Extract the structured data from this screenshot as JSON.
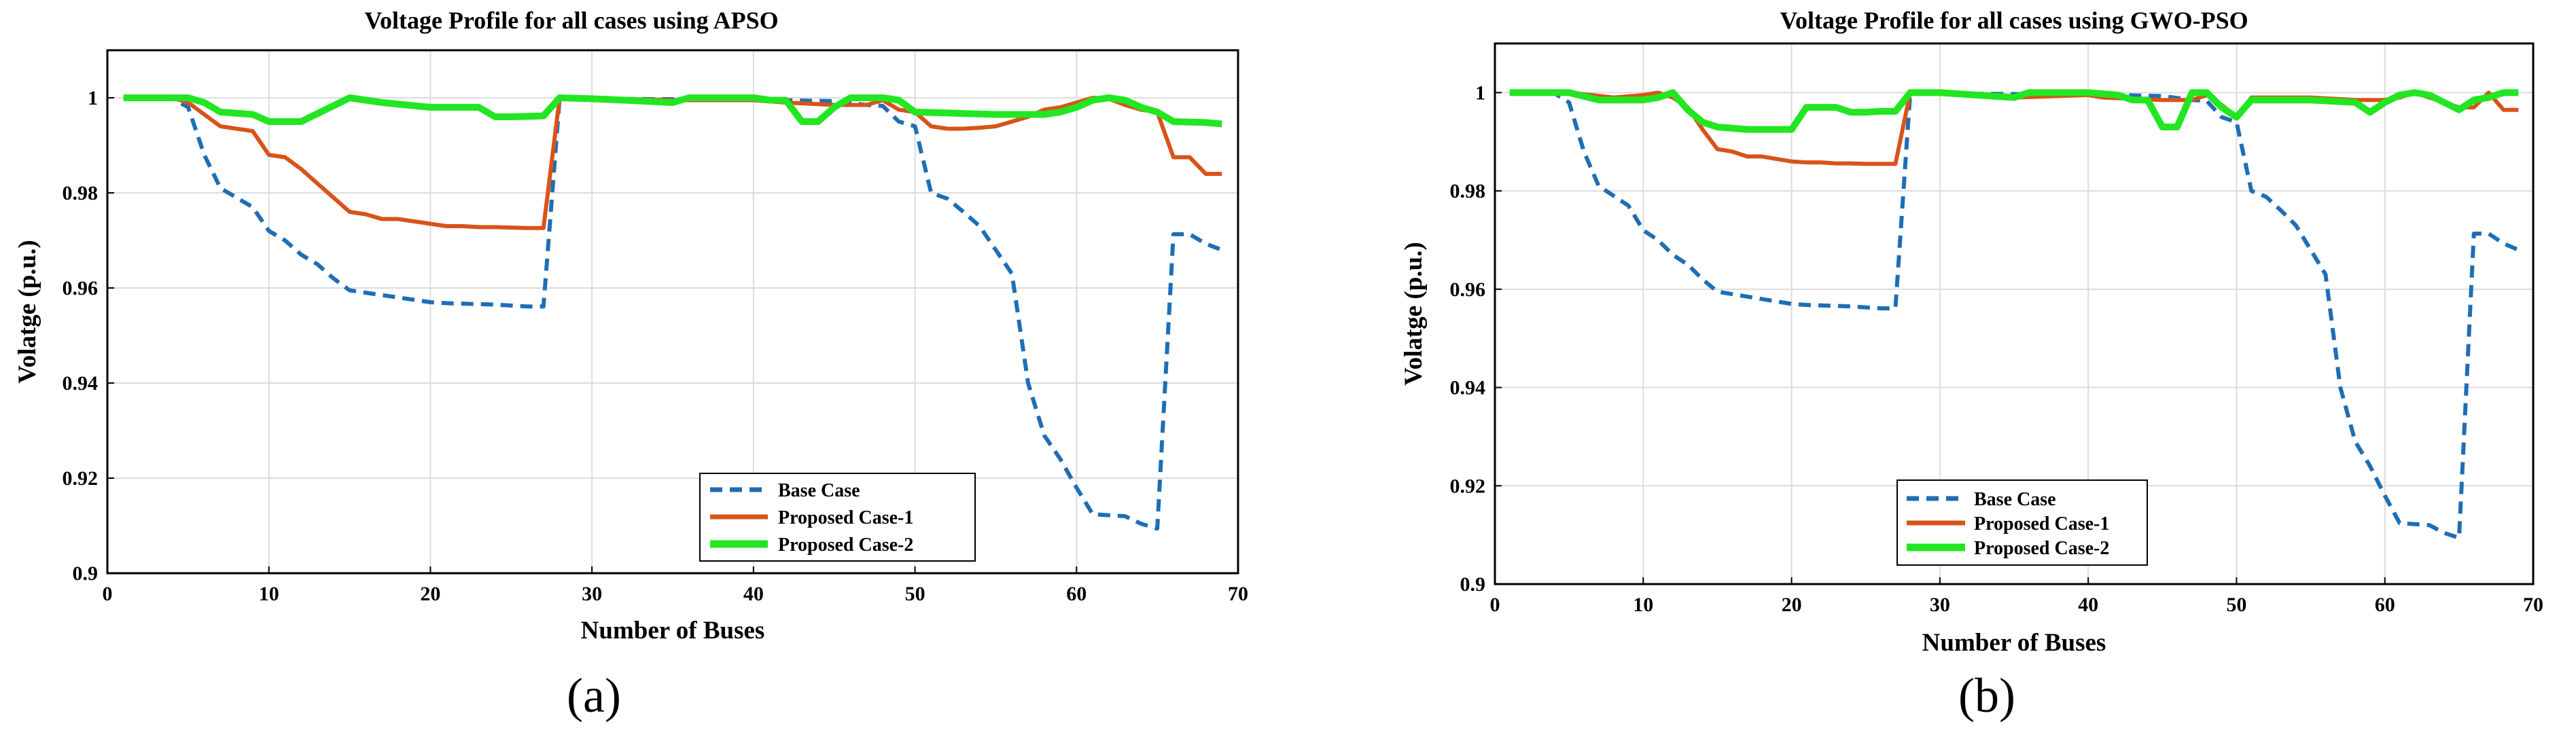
{
  "chart_data": [
    {
      "type": "line",
      "panel_label": "(a)",
      "title": "Voltage Profile for all cases using APSO",
      "xlabel": "Number of Buses",
      "ylabel": "Volatge (p.u.)",
      "xlim": [
        0,
        70
      ],
      "ylim": [
        0.9,
        1.01
      ],
      "xticks": [
        0,
        10,
        20,
        30,
        40,
        50,
        60,
        70
      ],
      "yticks": [
        0.9,
        0.92,
        0.94,
        0.96,
        0.98,
        1
      ],
      "legend_position": "bottom-right",
      "series": [
        {
          "name": "Base Case",
          "style": "dashed",
          "x": [
            1,
            4,
            5,
            6,
            7,
            8,
            9,
            10,
            11,
            12,
            13,
            14,
            15,
            16,
            17,
            18,
            19,
            20,
            21,
            22,
            23,
            24,
            25,
            26,
            27,
            28,
            29,
            30,
            35,
            40,
            45,
            47,
            48,
            49,
            50,
            51,
            52,
            53,
            54,
            55,
            56,
            57,
            58,
            59,
            60,
            61,
            62,
            63,
            64,
            65,
            66,
            67,
            68,
            69
          ],
          "y": [
            1,
            0.9999,
            0.998,
            0.988,
            0.981,
            0.979,
            0.977,
            0.972,
            0.97,
            0.967,
            0.965,
            0.962,
            0.9595,
            0.959,
            0.9585,
            0.958,
            0.9575,
            0.957,
            0.9568,
            0.9567,
            0.9566,
            0.9565,
            0.9563,
            0.9561,
            0.9561,
            1,
            0.9999,
            0.9998,
            0.9997,
            0.9996,
            0.9993,
            0.9985,
            0.9983,
            0.995,
            0.994,
            0.98,
            0.9788,
            0.976,
            0.973,
            0.968,
            0.963,
            0.94,
            0.929,
            0.924,
            0.918,
            0.9124,
            0.9122,
            0.912,
            0.9104,
            0.9094,
            0.9713,
            0.9713,
            0.9693,
            0.968
          ]
        },
        {
          "name": "Proposed Case-1",
          "style": "solid",
          "x": [
            1,
            4,
            5,
            6,
            7,
            8,
            9,
            10,
            11,
            12,
            13,
            14,
            15,
            16,
            17,
            18,
            19,
            20,
            21,
            22,
            23,
            24,
            25,
            26,
            27,
            28,
            29,
            30,
            35,
            40,
            42,
            45,
            46,
            47,
            48,
            49,
            50,
            51,
            52,
            53,
            54,
            55,
            56,
            57,
            58,
            59,
            60,
            61,
            62,
            63,
            64,
            65,
            66,
            67,
            68,
            69
          ],
          "y": [
            1,
            1,
            0.999,
            0.9965,
            0.994,
            0.9935,
            0.993,
            0.988,
            0.9875,
            0.985,
            0.982,
            0.979,
            0.976,
            0.9755,
            0.9745,
            0.9745,
            0.974,
            0.9735,
            0.973,
            0.973,
            0.9728,
            0.9728,
            0.9727,
            0.9726,
            0.9726,
            1,
            1,
            0.9999,
            0.9995,
            0.9995,
            0.999,
            0.9985,
            0.9985,
            0.9985,
            0.9995,
            0.9975,
            0.997,
            0.994,
            0.9935,
            0.9935,
            0.9937,
            0.994,
            0.995,
            0.996,
            0.9975,
            0.998,
            0.999,
            1,
            0.9998,
            0.9985,
            0.9975,
            0.997,
            0.9875,
            0.9875,
            0.984,
            0.984
          ]
        },
        {
          "name": "Proposed Case-2",
          "style": "solid",
          "x": [
            1,
            5,
            6,
            7,
            9,
            10,
            11,
            12,
            15,
            17,
            20,
            21,
            22,
            23,
            24,
            25,
            27,
            28,
            30,
            32,
            35,
            36,
            40,
            41,
            42,
            43,
            44,
            45,
            46,
            47,
            48,
            49,
            50,
            52,
            55,
            58,
            59,
            60,
            61,
            62,
            63,
            64,
            65,
            66,
            68,
            69
          ],
          "y": [
            1,
            1,
            0.999,
            0.997,
            0.9965,
            0.995,
            0.995,
            0.995,
            1,
            0.999,
            0.998,
            0.998,
            0.998,
            0.998,
            0.996,
            0.996,
            0.9962,
            1,
            0.9998,
            0.9995,
            0.999,
            1,
            1,
            0.9995,
            0.9995,
            0.995,
            0.995,
            0.998,
            1,
            1,
            1,
            0.9995,
            0.997,
            0.9968,
            0.9965,
            0.9965,
            0.997,
            0.998,
            0.9995,
            1,
            0.9995,
            0.998,
            0.997,
            0.995,
            0.9948,
            0.9945
          ]
        }
      ]
    },
    {
      "type": "line",
      "panel_label": "(b)",
      "title": "Voltage Profile for all cases using GWO-PSO",
      "xlabel": "Number of Buses",
      "ylabel": "Volatge (p.u.)",
      "xlim": [
        0,
        70
      ],
      "ylim": [
        0.9,
        1.01
      ],
      "xticks": [
        0,
        10,
        20,
        30,
        40,
        50,
        60,
        70
      ],
      "yticks": [
        0.9,
        0.92,
        0.94,
        0.96,
        0.98,
        1
      ],
      "legend_position": "bottom-left",
      "series": [
        {
          "name": "Base Case",
          "style": "dashed",
          "x": [
            1,
            4,
            5,
            6,
            7,
            8,
            9,
            10,
            11,
            12,
            13,
            14,
            15,
            16,
            17,
            18,
            19,
            20,
            21,
            22,
            23,
            24,
            25,
            26,
            27,
            28,
            29,
            30,
            35,
            40,
            45,
            47,
            48,
            49,
            50,
            51,
            52,
            53,
            54,
            55,
            56,
            57,
            58,
            59,
            60,
            61,
            62,
            63,
            64,
            65,
            66,
            67,
            68,
            69
          ],
          "y": [
            1,
            0.9999,
            0.998,
            0.988,
            0.981,
            0.979,
            0.977,
            0.972,
            0.97,
            0.967,
            0.965,
            0.962,
            0.9595,
            0.959,
            0.9585,
            0.958,
            0.9575,
            0.957,
            0.9568,
            0.9567,
            0.9566,
            0.9565,
            0.9563,
            0.9561,
            0.9561,
            1,
            0.9999,
            0.9998,
            0.9997,
            0.9996,
            0.9993,
            0.9985,
            0.9983,
            0.995,
            0.994,
            0.98,
            0.9788,
            0.976,
            0.973,
            0.968,
            0.963,
            0.94,
            0.929,
            0.924,
            0.918,
            0.9124,
            0.9122,
            0.912,
            0.9104,
            0.9094,
            0.9713,
            0.9713,
            0.9693,
            0.968
          ]
        },
        {
          "name": "Proposed Case-1",
          "style": "solid",
          "x": [
            1,
            5,
            8,
            10,
            11,
            12,
            13,
            14,
            15,
            16,
            17,
            18,
            19,
            20,
            21,
            22,
            23,
            24,
            25,
            26,
            27,
            28,
            30,
            35,
            40,
            41,
            45,
            47,
            48,
            49,
            50,
            51,
            55,
            58,
            60,
            61,
            62,
            63,
            64,
            65,
            66,
            67,
            68,
            69
          ],
          "y": [
            1,
            1,
            0.999,
            0.9995,
            1,
            0.999,
            0.997,
            0.9925,
            0.9885,
            0.988,
            0.987,
            0.987,
            0.9865,
            0.986,
            0.9858,
            0.9858,
            0.9856,
            0.9856,
            0.9855,
            0.9855,
            0.9855,
            1,
            1,
            0.999,
            0.9995,
            0.999,
            0.9985,
            0.9985,
            0.9995,
            0.9975,
            0.995,
            0.999,
            0.999,
            0.9985,
            0.9985,
            0.999,
            1,
            0.999,
            0.998,
            0.997,
            0.997,
            1,
            0.9965,
            0.9965
          ]
        },
        {
          "name": "Proposed Case-2",
          "style": "solid",
          "x": [
            1,
            5,
            7,
            10,
            11,
            12,
            13,
            14,
            15,
            17,
            20,
            21,
            23,
            24,
            25,
            26,
            27,
            28,
            30,
            35,
            36,
            40,
            42,
            43,
            44,
            45,
            46,
            47,
            48,
            49,
            50,
            51,
            55,
            58,
            59,
            60,
            61,
            62,
            63,
            64,
            65,
            66,
            67,
            68,
            69
          ],
          "y": [
            1,
            1,
            0.9985,
            0.9985,
            0.999,
            1,
            0.9965,
            0.994,
            0.993,
            0.9925,
            0.9925,
            0.997,
            0.997,
            0.996,
            0.996,
            0.9962,
            0.9962,
            1,
            1,
            0.999,
            1,
            1,
            0.9995,
            0.9985,
            0.9985,
            0.993,
            0.993,
            1,
            1,
            0.997,
            0.995,
            0.9985,
            0.9985,
            0.998,
            0.996,
            0.998,
            0.9995,
            1,
            0.9995,
            0.998,
            0.9965,
            0.9985,
            0.999,
            1,
            1
          ]
        }
      ]
    }
  ],
  "colors": {
    "base_case": "#1f6eb4",
    "proposed_case_1": "#d95319",
    "proposed_case_2": "#22e622",
    "grid": "#dcdcdc",
    "axis": "#000000"
  }
}
